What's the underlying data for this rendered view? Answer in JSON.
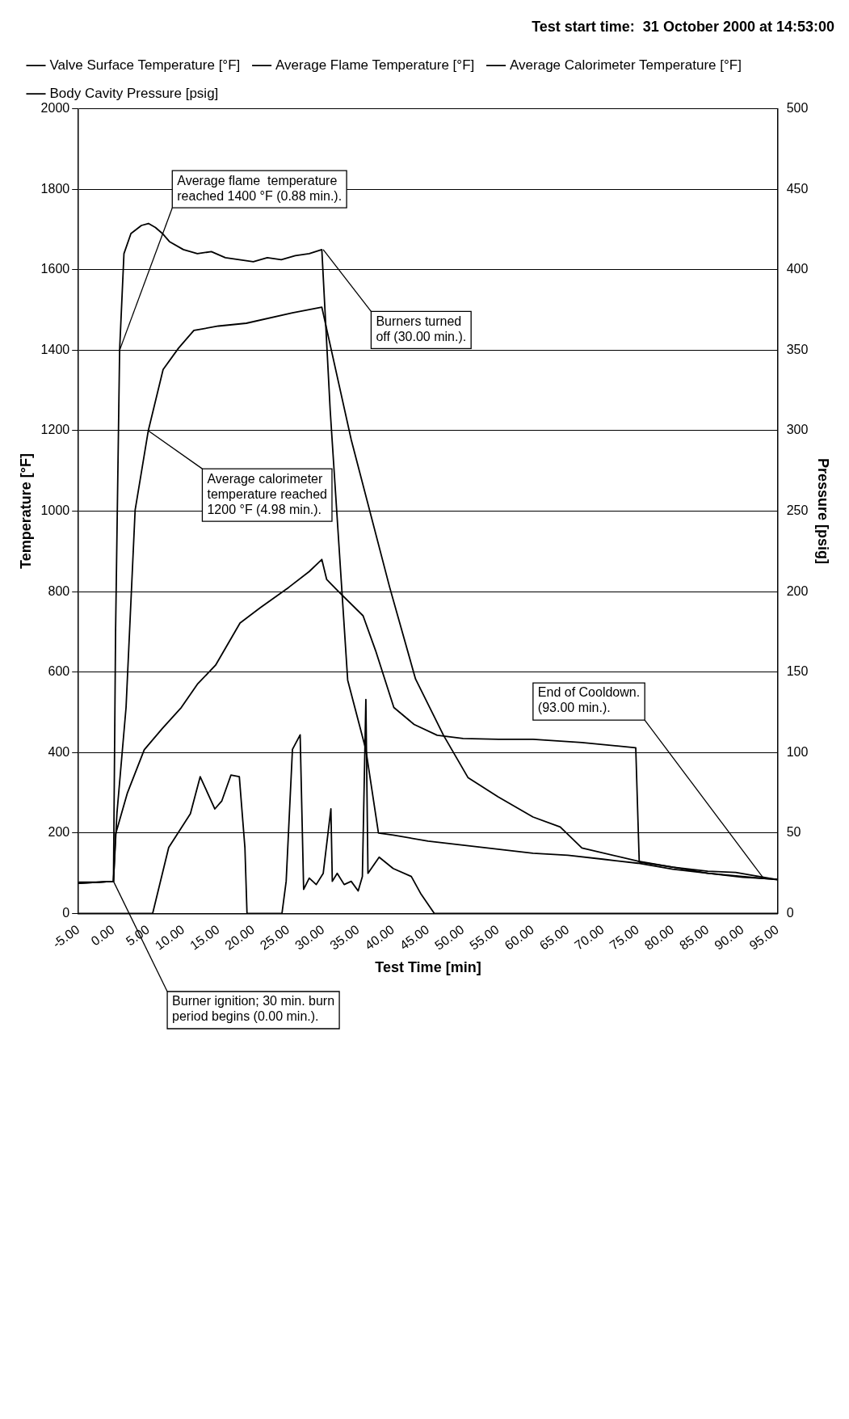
{
  "chart_data": {
    "type": "line",
    "title": "Test start time:  31 October 2000 at 14:53:00",
    "xlabel": "Test Time [min]",
    "ylabel": "Temperature [°F]",
    "y2label": "Pressure [psig]",
    "xlim": [
      -5,
      95
    ],
    "xticks": [
      {
        "value": -5,
        "label": "-5.00"
      },
      {
        "value": 0,
        "label": "0.00"
      },
      {
        "value": 5,
        "label": "5.00"
      },
      {
        "value": 10,
        "label": "10.00"
      },
      {
        "value": 15,
        "label": "15.00"
      },
      {
        "value": 20,
        "label": "20.00"
      },
      {
        "value": 25,
        "label": "25.00"
      },
      {
        "value": 30,
        "label": "30.00"
      },
      {
        "value": 35,
        "label": "35.00"
      },
      {
        "value": 40,
        "label": "40.00"
      },
      {
        "value": 45,
        "label": "45.00"
      },
      {
        "value": 50,
        "label": "50.00"
      },
      {
        "value": 55,
        "label": "55.00"
      },
      {
        "value": 60,
        "label": "60.00"
      },
      {
        "value": 65,
        "label": "65.00"
      },
      {
        "value": 70,
        "label": "70.00"
      },
      {
        "value": 75,
        "label": "75.00"
      },
      {
        "value": 80,
        "label": "80.00"
      },
      {
        "value": 85,
        "label": "85.00"
      },
      {
        "value": 90,
        "label": "90.00"
      },
      {
        "value": 95,
        "label": "95.00"
      }
    ],
    "ylim": [
      0,
      2000
    ],
    "yticks": [
      0,
      200,
      400,
      600,
      800,
      1000,
      1200,
      1400,
      1600,
      1800,
      2000
    ],
    "y2lim": [
      0,
      500
    ],
    "y2ticks": [
      0,
      50,
      100,
      150,
      200,
      250,
      300,
      350,
      400,
      450,
      500
    ],
    "grid": "y",
    "legend": "top left",
    "series": [
      {
        "name": "Valve Surface Temperature [°F]",
        "color": "#000000",
        "x": [
          -5,
          0,
          0.3,
          2,
          4.4,
          7,
          9.7,
          12,
          14.6,
          18.1,
          21,
          25.1,
          28,
          29.8,
          30.5,
          32.2,
          35.7,
          37.5,
          40.1,
          43,
          46.3,
          50,
          55.1,
          60,
          67,
          74.7,
          75.2,
          80,
          85,
          90,
          95
        ],
        "values": [
          75,
          80,
          197,
          300,
          407,
          460,
          512,
          570,
          617,
          722,
          760,
          811,
          850,
          880,
          830,
          800,
          740,
          653,
          512,
          470,
          443,
          435,
          433,
          433,
          425,
          412,
          128,
          115,
          100,
          92,
          84
        ]
      },
      {
        "name": "Average Flame Temperature [°F]",
        "color": "#000000",
        "x": [
          -5,
          -2,
          0,
          0.3,
          0.88,
          1.5,
          2.5,
          4,
          5,
          6,
          7,
          8,
          10,
          12,
          14,
          16,
          18,
          20,
          22,
          24,
          26,
          28,
          29.8,
          31,
          33.5,
          36.1,
          37.9,
          40,
          45,
          50,
          55,
          60,
          65,
          70,
          75,
          80,
          85,
          90,
          95
        ],
        "values": [
          78,
          78,
          80,
          700,
          1400,
          1640,
          1690,
          1710,
          1715,
          1705,
          1690,
          1670,
          1650,
          1640,
          1645,
          1630,
          1625,
          1620,
          1630,
          1625,
          1635,
          1640,
          1650,
          1250,
          580,
          407,
          200,
          195,
          180,
          170,
          160,
          150,
          145,
          135,
          125,
          110,
          100,
          90,
          85
        ]
      },
      {
        "name": "Average Calorimeter Temperature [°F]",
        "color": "#000000",
        "x": [
          -5,
          0,
          0.5,
          1.8,
          3.1,
          4.98,
          7.1,
          9.3,
          11.5,
          15,
          19,
          25.6,
          29.8,
          34,
          39.5,
          43.2,
          47.2,
          50.7,
          55,
          60,
          63.9,
          67,
          75,
          80,
          85,
          89,
          95
        ],
        "values": [
          75,
          80,
          250,
          512,
          1003,
          1200,
          1352,
          1405,
          1449,
          1460,
          1467,
          1493,
          1507,
          1178,
          811,
          583,
          443,
          338,
          290,
          240,
          215,
          163,
          130,
          115,
          105,
          102,
          84
        ]
      },
      {
        "name": "Body Cavity Pressure [psig]",
        "color": "#000000",
        "axis": "y2",
        "x": [
          -5,
          5.6,
          7.9,
          11,
          12.4,
          14.5,
          15.5,
          16.8,
          18,
          18.8,
          19.1,
          24.1,
          24.7,
          25.6,
          26.7,
          27.2,
          28,
          29,
          30,
          31.1,
          31.3,
          32,
          33,
          34,
          35,
          35.6,
          36.1,
          36.4,
          38,
          40,
          42.6,
          44,
          45.9,
          95
        ],
        "values": [
          0,
          0,
          41,
          62,
          85,
          65,
          70,
          86,
          85,
          41,
          0,
          0,
          20,
          102,
          111,
          15,
          22,
          18,
          25,
          65,
          20,
          25,
          18,
          20,
          14,
          23,
          133,
          25,
          35,
          28,
          23,
          12,
          0,
          0
        ]
      }
    ],
    "annotations": [
      {
        "text": "Average flame  temperature\nreached 1400 °F (0.88 min.).",
        "x": 0.88,
        "y": 1400
      },
      {
        "text": "Average calorimeter\ntemperature reached\n1200 °F (4.98 min.).",
        "x": 4.98,
        "y": 1200
      },
      {
        "text": "Burners turned\noff (30.00 min.).",
        "x": 30,
        "y": 1650
      },
      {
        "text": "Burner ignition; 30 min. burn\nperiod begins (0.00 min.).",
        "x": 0,
        "y": 80
      },
      {
        "text": "End of Cooldown.\n(93.00 min.).",
        "x": 93,
        "y": 87
      }
    ]
  }
}
